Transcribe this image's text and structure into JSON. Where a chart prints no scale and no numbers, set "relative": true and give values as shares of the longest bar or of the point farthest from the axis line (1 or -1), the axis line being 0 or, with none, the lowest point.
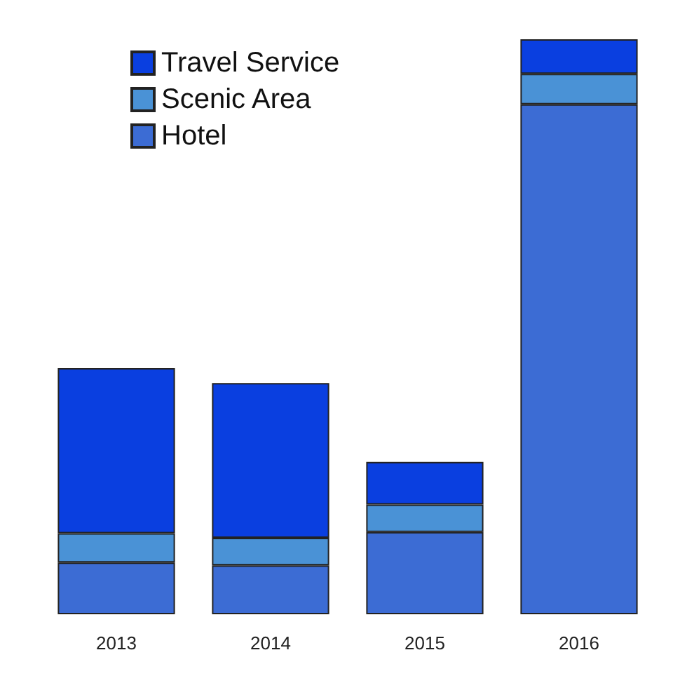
{
  "chart_data": {
    "type": "bar",
    "stacked": true,
    "relative": true,
    "categories": [
      "2013",
      "2014",
      "2015",
      "2016"
    ],
    "series": [
      {
        "name": "Hotel",
        "color": "#3c6cd4",
        "values": [
          0.09,
          0.085,
          0.143,
          0.887
        ]
      },
      {
        "name": "Scenic Area",
        "color": "#4a92d6",
        "values": [
          0.051,
          0.048,
          0.048,
          0.053
        ]
      },
      {
        "name": "Travel Service",
        "color": "#0a3fe0",
        "values": [
          0.287,
          0.269,
          0.074,
          0.06
        ]
      }
    ],
    "legend": "top left"
  }
}
